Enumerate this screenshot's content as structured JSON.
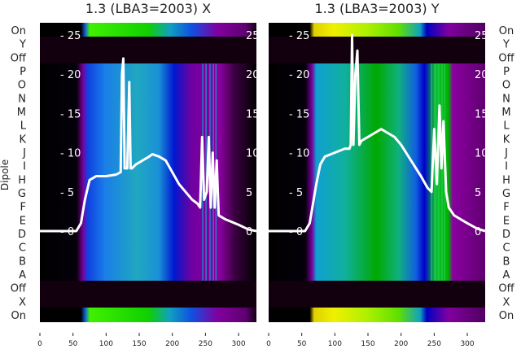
{
  "chart_data": [
    {
      "type": "heatmap",
      "title": "1.3 (LBA3=2003) X",
      "ylabel": "Dipole",
      "row_labels": [
        "On",
        "Y",
        "Off",
        "P",
        "O",
        "N",
        "M",
        "L",
        "K",
        "J",
        "I",
        "H",
        "G",
        "F",
        "E",
        "D",
        "C",
        "B",
        "A",
        "Off",
        "X",
        "On"
      ],
      "xticks": [
        0,
        50,
        100,
        150,
        200,
        250,
        300
      ],
      "xlim": [
        0,
        327
      ],
      "inner_yticks": [
        0,
        5,
        10,
        15,
        20,
        25
      ],
      "overlay_line": {
        "x": [
          0,
          55,
          62,
          68,
          75,
          85,
          100,
          115,
          122,
          124,
          126,
          128,
          132,
          135,
          137,
          139,
          145,
          155,
          165,
          170,
          180,
          190,
          200,
          210,
          220,
          230,
          238,
          242,
          245,
          248,
          252,
          255,
          258,
          261,
          264,
          267,
          270,
          280,
          300,
          315,
          327
        ],
        "y": [
          0,
          0,
          1,
          4,
          6.5,
          7,
          7,
          7.2,
          7.5,
          20,
          22,
          8,
          8,
          19,
          8,
          8,
          8.5,
          9,
          9.5,
          9.8,
          9.5,
          9,
          7.5,
          6,
          5,
          4,
          3.5,
          3,
          12,
          4,
          5,
          12,
          3,
          10,
          3,
          9,
          2,
          1.5,
          0.8,
          0.2,
          0
        ]
      }
    },
    {
      "type": "heatmap",
      "title": "1.3 (LBA3=2003) Y",
      "row_labels": [
        "On",
        "Y",
        "Off",
        "P",
        "O",
        "N",
        "M",
        "L",
        "K",
        "J",
        "I",
        "H",
        "G",
        "F",
        "E",
        "D",
        "C",
        "B",
        "A",
        "Off",
        "X",
        "On"
      ],
      "xticks": [
        0,
        50,
        100,
        150,
        200,
        250,
        300
      ],
      "xlim": [
        0,
        327
      ],
      "inner_yticks": [
        0,
        5,
        10,
        15,
        20,
        25
      ],
      "overlay_line": {
        "x": [
          0,
          55,
          62,
          68,
          72,
          78,
          85,
          100,
          115,
          122,
          124,
          126,
          128,
          131,
          134,
          137,
          140,
          150,
          160,
          170,
          180,
          190,
          200,
          215,
          230,
          240,
          246,
          250,
          254,
          258,
          261,
          264,
          268,
          272,
          280,
          300,
          315,
          327
        ],
        "y": [
          0,
          0,
          1,
          4,
          6,
          8.5,
          9.5,
          10,
          10.5,
          10.5,
          11,
          25,
          11,
          20,
          23,
          11,
          11.5,
          12,
          12.5,
          13,
          12.5,
          12,
          11,
          9,
          7,
          5.5,
          5,
          13,
          6,
          16,
          8,
          14,
          5,
          3,
          2,
          1,
          0.3,
          0
        ]
      }
    }
  ]
}
